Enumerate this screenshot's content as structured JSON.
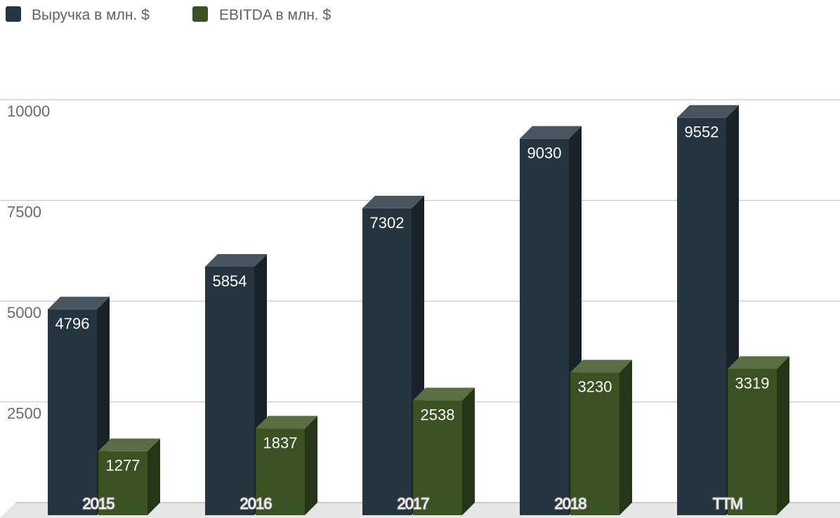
{
  "chart_data": {
    "type": "bar",
    "categories": [
      "2015",
      "2016",
      "2017",
      "2018",
      "TTM"
    ],
    "series": [
      {
        "name": "Выручка в млн. $",
        "values": [
          4796,
          5854,
          7302,
          9030,
          9552
        ],
        "color": "#25353f"
      },
      {
        "name": "EBITDA в млн. $",
        "values": [
          1277,
          1837,
          2538,
          3230,
          3319
        ],
        "color": "#3a5221"
      }
    ],
    "yticks": [
      2500,
      5000,
      7500,
      10000
    ],
    "ylim": [
      0,
      10000
    ],
    "title": "",
    "xlabel": "",
    "ylabel": "",
    "grid": true,
    "legend_position": "top-left",
    "style": "3d-bars"
  }
}
